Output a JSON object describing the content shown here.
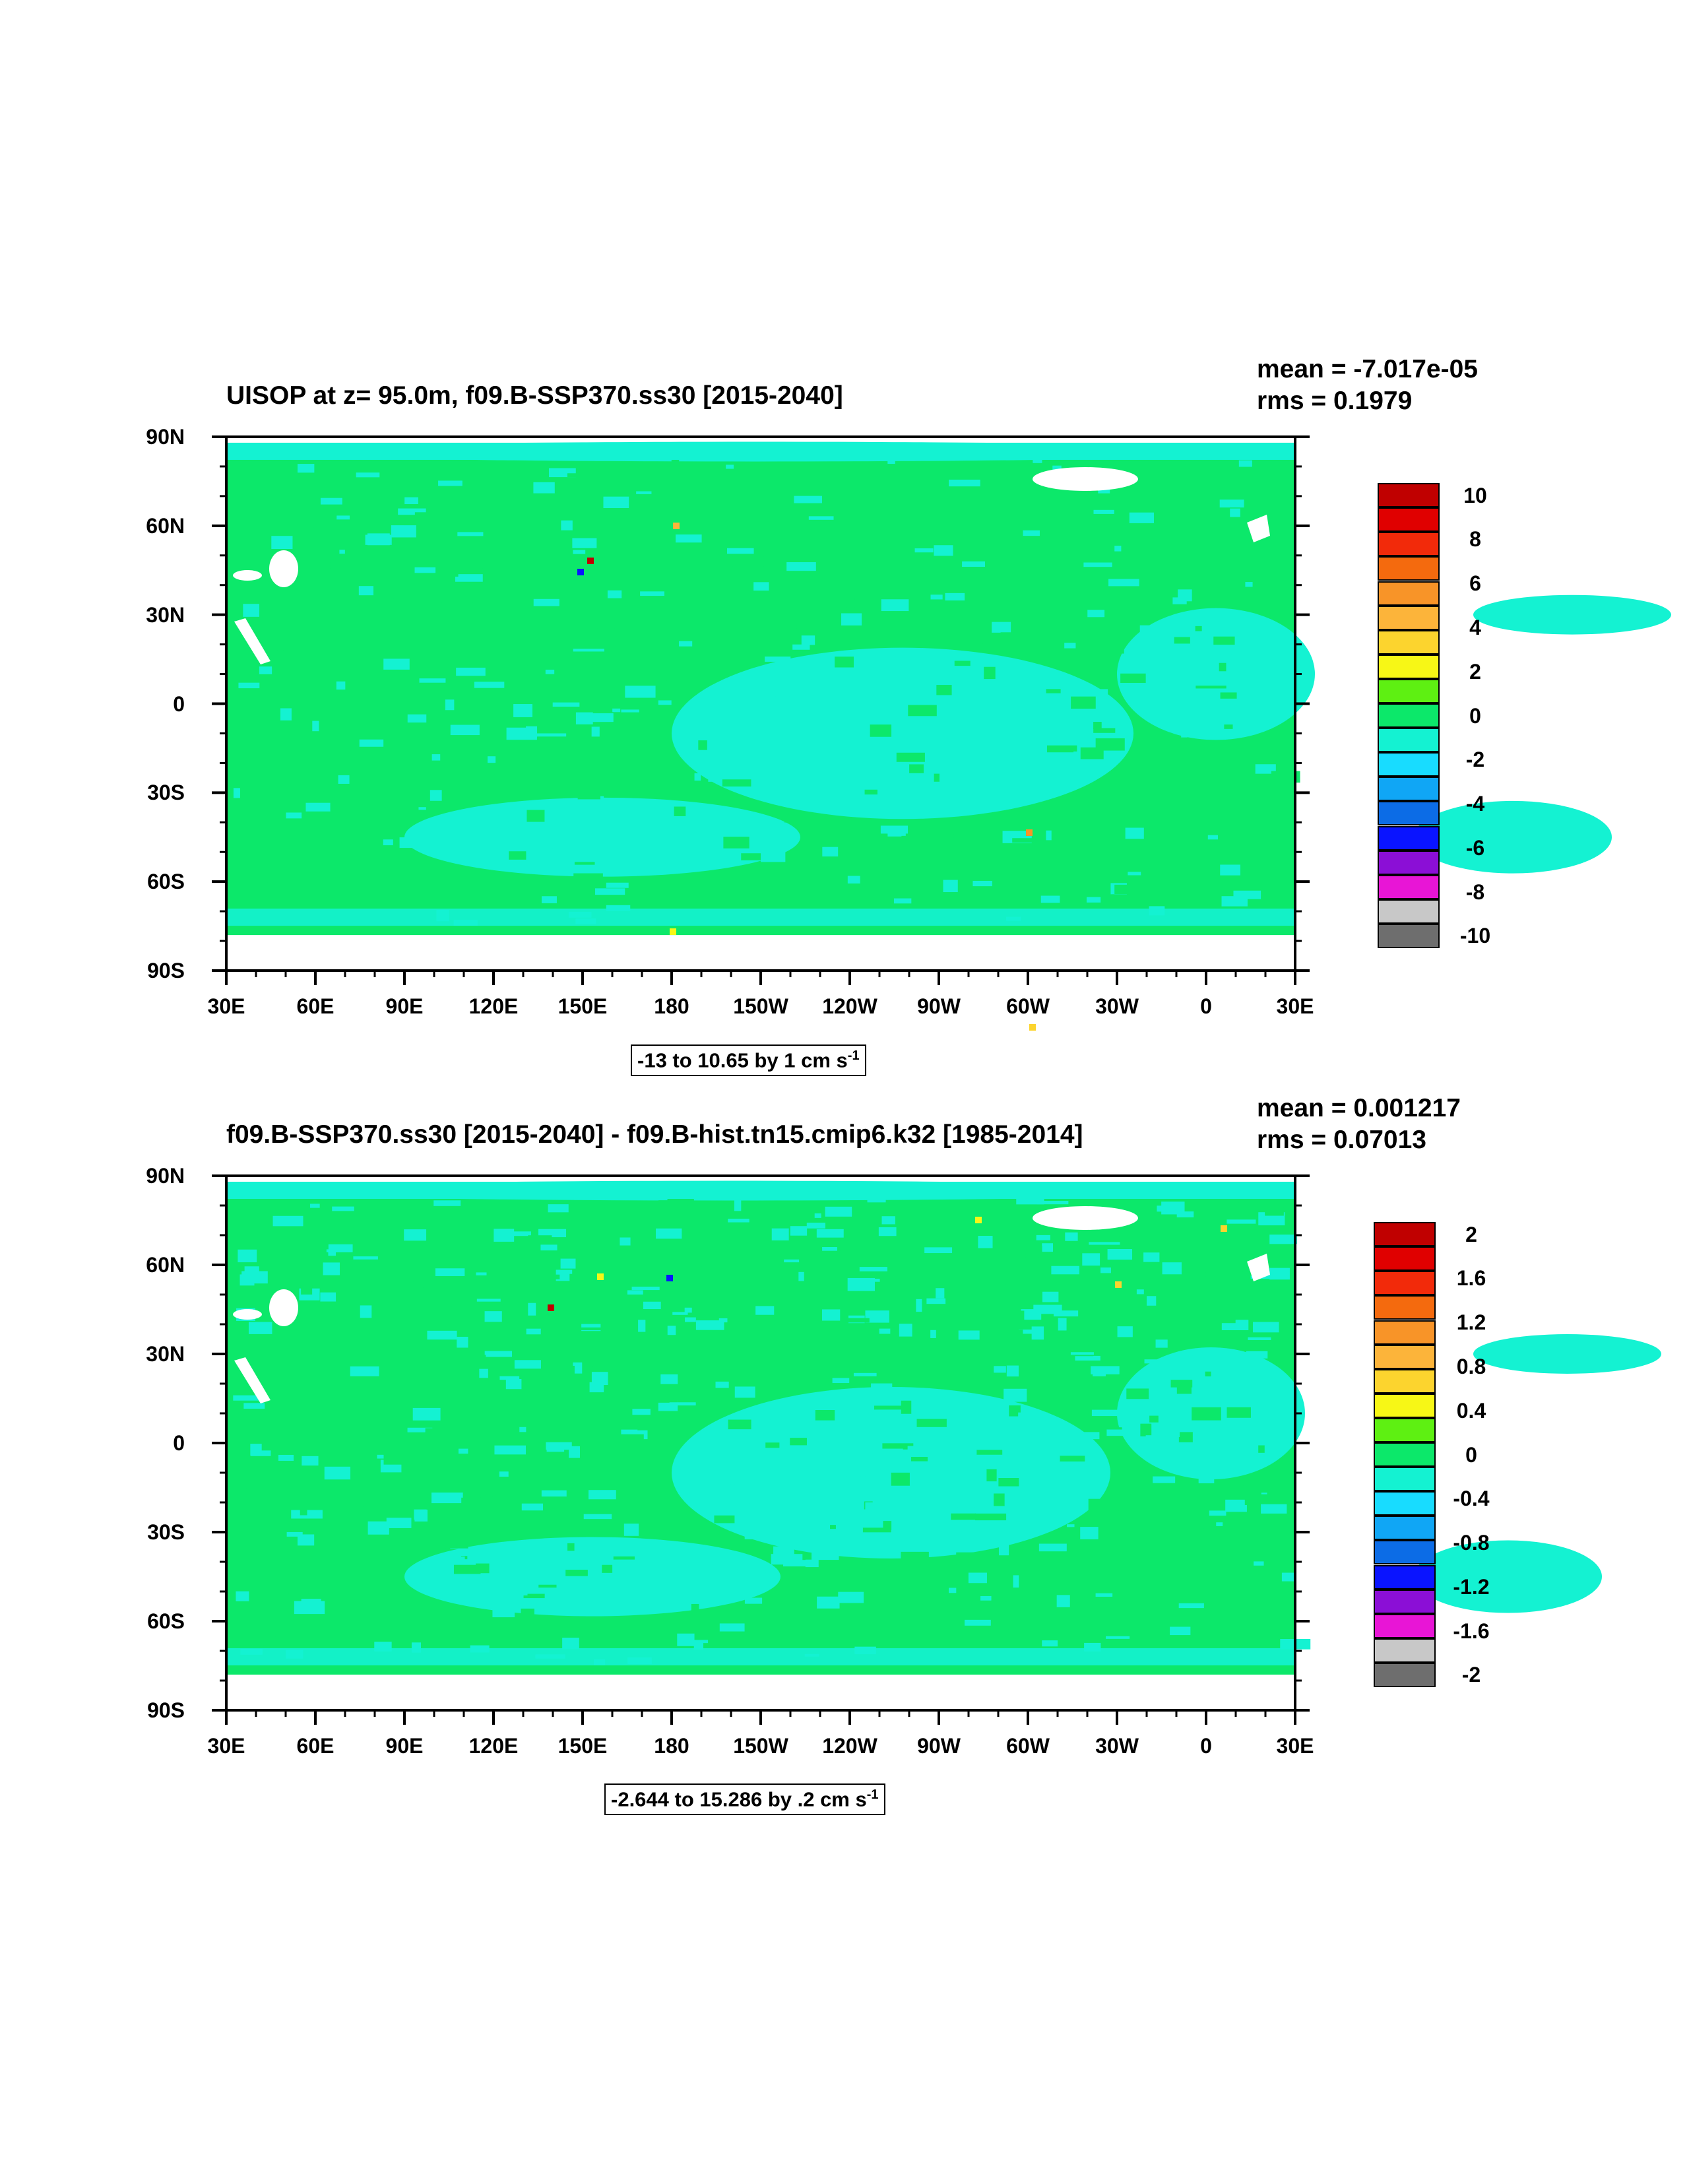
{
  "colorbar_colors": [
    "#6e6e6e",
    "#c8c8c8",
    "#e815d6",
    "#8b0fd6",
    "#0a14ff",
    "#0c6ce6",
    "#10a6f5",
    "#18dcff",
    "#14f2d2",
    "#0ce86a",
    "#5ef012",
    "#f7f716",
    "#fcd42e",
    "#fcb43a",
    "#f89428",
    "#f46a0e",
    "#f22a0a",
    "#e00000",
    "#c00000"
  ],
  "panels": [
    {
      "title": "UISOP at z=  95.0m, f09.B-SSP370.ss30 [2015-2040]",
      "mean": "mean = -7.017e-05",
      "rms": "rms = 0.1979",
      "subtitle_text": "-13 to 10.65 by 1 cm s",
      "subtitle_sup": "-1",
      "colorbar_labels": [
        "10",
        "8",
        "6",
        "4",
        "2",
        "0",
        "-2",
        "-4",
        "-6",
        "-8",
        "-10"
      ]
    },
    {
      "title": "f09.B-SSP370.ss30 [2015-2040] - f09.B-hist.tn15.cmip6.k32 [1985-2014]",
      "mean": "mean = 0.001217",
      "rms": "rms = 0.07013",
      "subtitle_text": "-2.644 to 15.286 by .2 cm s",
      "subtitle_sup": "-1",
      "colorbar_labels": [
        "2",
        "1.6",
        "1.2",
        "0.8",
        "0.4",
        "0",
        "-0.4",
        "-0.8",
        "-1.2",
        "-1.6",
        "-2"
      ]
    }
  ],
  "y_ticks": [
    "90N",
    "60N",
    "30N",
    "0",
    "30S",
    "60S",
    "90S"
  ],
  "x_ticks": [
    "30E",
    "60E",
    "90E",
    "120E",
    "150E",
    "180",
    "150W",
    "120W",
    "90W",
    "60W",
    "30W",
    "0",
    "30E"
  ],
  "chart_data": [
    {
      "type": "heatmap",
      "title": "UISOP at z=  95.0m, f09.B-SSP370.ss30 [2015-2040]",
      "mean": -7.017e-05,
      "rms": 0.1979,
      "range_note": "-13 to 10.65 by 1 cm s-1",
      "x": "longitude 30E to 30E (360 deg)",
      "y": "latitude 90S to 90N",
      "levels": [
        -10,
        -8,
        -6,
        -4,
        -2,
        0,
        2,
        4,
        6,
        8,
        10
      ],
      "dominant_values": [
        "0 to 1 (green) over most of the domain",
        "-1 to 0 (cyan) over large ocean areas"
      ]
    },
    {
      "type": "heatmap",
      "title": "f09.B-SSP370.ss30 [2015-2040] - f09.B-hist.tn15.cmip6.k32 [1985-2014]",
      "mean": 0.001217,
      "rms": 0.07013,
      "range_note": "-2.644 to 15.286 by .2 cm s-1",
      "x": "longitude 30E to 30E (360 deg)",
      "y": "latitude 90S to 90N",
      "levels": [
        -2,
        -1.6,
        -1.2,
        -0.8,
        -0.4,
        0,
        0.4,
        0.8,
        1.2,
        1.6,
        2
      ],
      "dominant_values": [
        "0 to 0.2 (green) over most of the domain",
        "-0.2 to 0 (cyan) over large ocean areas"
      ]
    }
  ]
}
